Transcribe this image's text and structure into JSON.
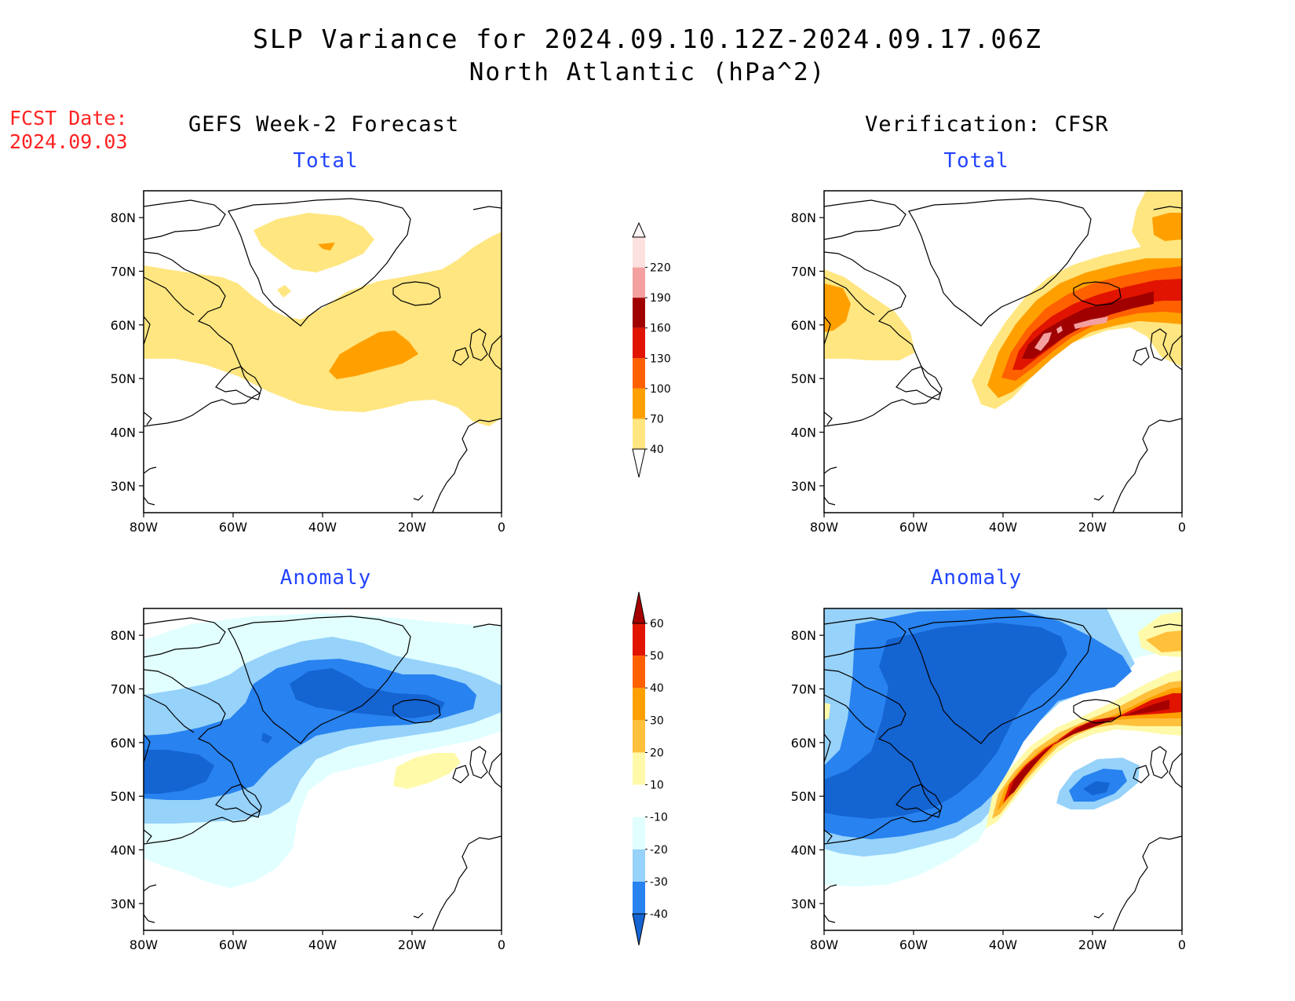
{
  "header": {
    "title": "SLP Variance for 2024.09.10.12Z-2024.09.17.06Z",
    "subtitle": "North Atlantic (hPa^2)",
    "fcst_label": "FCST Date:",
    "fcst_date": "2024.09.03"
  },
  "columns": {
    "left": "GEFS Week-2 Forecast",
    "right": "Verification: CFSR"
  },
  "panels": {
    "gefs_total": "Total",
    "gefs_anomaly": "Anomaly",
    "cfsr_total": "Total",
    "cfsr_anomaly": "Anomaly"
  },
  "axes": {
    "lat_ticks": [
      "80N",
      "70N",
      "60N",
      "50N",
      "40N",
      "30N"
    ],
    "lon_ticks": [
      "80W",
      "60W",
      "40W",
      "20W",
      "0"
    ],
    "lat_values": [
      80,
      70,
      60,
      50,
      40,
      30
    ],
    "lon_values": [
      -80,
      -60,
      -40,
      -20,
      0
    ],
    "lat_range": [
      25,
      85
    ],
    "lon_range": [
      -80,
      0
    ]
  },
  "colorbars": {
    "total": {
      "levels": [
        "40",
        "70",
        "100",
        "130",
        "160",
        "190",
        "220"
      ],
      "colors": [
        "#ffe680",
        "#ffa000",
        "#ff6000",
        "#e01400",
        "#a00000",
        "#f4a0a0",
        "#fde0e0"
      ]
    },
    "anomaly": {
      "levels": [
        "-40",
        "-30",
        "-20",
        "-10",
        "10",
        "20",
        "30",
        "40",
        "50",
        "60"
      ],
      "colors": [
        "#1464d2",
        "#2882f0",
        "#96d2fa",
        "#e1ffff",
        "#ffffff",
        "#fffaaa",
        "#ffc03c",
        "#ffa000",
        "#ff6000",
        "#e11400",
        "#a50000"
      ]
    }
  }
}
